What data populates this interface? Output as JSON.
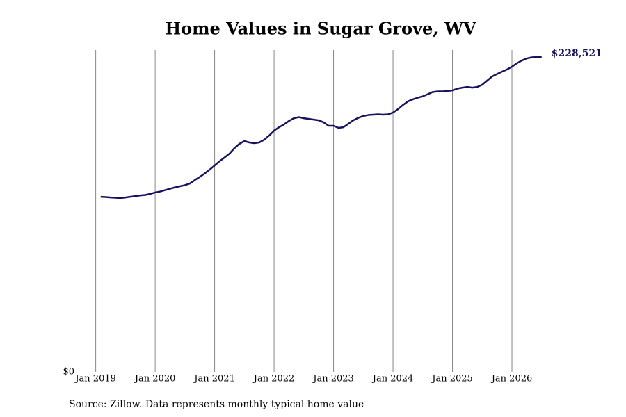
{
  "chart_data": {
    "type": "line",
    "title": "Home Values in Sugar Grove, WV",
    "source": "Source: Zillow. Data represents monthly typical home value",
    "color": "#16135e",
    "x": [
      "2019-02",
      "2019-03",
      "2019-04",
      "2019-05",
      "2019-06",
      "2019-07",
      "2019-08",
      "2019-09",
      "2019-10",
      "2019-11",
      "2019-12",
      "2020-01",
      "2020-02",
      "2020-03",
      "2020-04",
      "2020-05",
      "2020-06",
      "2020-07",
      "2020-08",
      "2020-09",
      "2020-10",
      "2020-11",
      "2020-12",
      "2021-01",
      "2021-02",
      "2021-03",
      "2021-04",
      "2021-05",
      "2021-06",
      "2021-07",
      "2021-08",
      "2021-09",
      "2021-10",
      "2021-11",
      "2021-12",
      "2022-01",
      "2022-02",
      "2022-03",
      "2022-04",
      "2022-05",
      "2022-06",
      "2022-07",
      "2022-08",
      "2022-09",
      "2022-10",
      "2022-11",
      "2022-12",
      "2023-01",
      "2023-02",
      "2023-03",
      "2023-04",
      "2023-05",
      "2023-06",
      "2023-07",
      "2023-08",
      "2023-09",
      "2023-10",
      "2023-11",
      "2023-12",
      "2024-01",
      "2024-02",
      "2024-03",
      "2024-04",
      "2024-05",
      "2024-06",
      "2024-07",
      "2024-08",
      "2024-09",
      "2024-10",
      "2024-11",
      "2024-12",
      "2025-01",
      "2025-02",
      "2025-03",
      "2025-04",
      "2025-05",
      "2025-06",
      "2025-07",
      "2025-08",
      "2025-09",
      "2025-10",
      "2025-11",
      "2025-12",
      "2026-01",
      "2026-02",
      "2026-03",
      "2026-04",
      "2026-05",
      "2026-06",
      "2026-07"
    ],
    "values": [
      127100,
      126900,
      126600,
      126400,
      126100,
      126600,
      127100,
      127600,
      128100,
      128400,
      129200,
      130200,
      130900,
      131900,
      132900,
      133900,
      134700,
      135500,
      136700,
      139200,
      141500,
      144000,
      146800,
      149800,
      152900,
      155600,
      158400,
      162400,
      165500,
      167500,
      166500,
      166000,
      166500,
      168500,
      171500,
      175100,
      177600,
      179600,
      182100,
      184100,
      184900,
      184100,
      183600,
      183100,
      182600,
      181100,
      178600,
      178600,
      177100,
      177600,
      180100,
      182600,
      184400,
      185700,
      186400,
      186700,
      186900,
      186700,
      186900,
      188200,
      190700,
      193700,
      196300,
      197800,
      199000,
      200000,
      201500,
      203100,
      203600,
      203600,
      203800,
      204300,
      205600,
      206300,
      206800,
      206300,
      206800,
      208400,
      211400,
      214400,
      216200,
      217900,
      219500,
      221500,
      224000,
      226000,
      227500,
      228300,
      228500,
      228521
    ],
    "value_labels": [
      null,
      null,
      null,
      null,
      null,
      null,
      null,
      null,
      null,
      null,
      null,
      null,
      null,
      null,
      null,
      null,
      null,
      null,
      null,
      null,
      null,
      null,
      null,
      null,
      null,
      null,
      null,
      null,
      null,
      null,
      null,
      null,
      null,
      null,
      null,
      null,
      null,
      null,
      null,
      null,
      null,
      null,
      null,
      null,
      null,
      null,
      null,
      null,
      null,
      null,
      null,
      null,
      null,
      null,
      null,
      null,
      null,
      null,
      null,
      null,
      null,
      null,
      null,
      null,
      null,
      null,
      null,
      null,
      null,
      null,
      null,
      null,
      null,
      null,
      null,
      null,
      null,
      null,
      null,
      null,
      null,
      null,
      null,
      null,
      null,
      null,
      null,
      null,
      null,
      "$228,521"
    ],
    "xlim": [
      "2018-08",
      "2026-09"
    ],
    "xticks": [
      {
        "value": "2019-01",
        "label": "Jan 2019"
      },
      {
        "value": "2020-01",
        "label": "Jan 2020"
      },
      {
        "value": "2021-01",
        "label": "Jan 2021"
      },
      {
        "value": "2022-01",
        "label": "Jan 2022"
      },
      {
        "value": "2023-01",
        "label": "Jan 2023"
      },
      {
        "value": "2024-01",
        "label": "Jan 2024"
      },
      {
        "value": "2025-01",
        "label": "Jan 2025"
      },
      {
        "value": "2026-01",
        "label": "Jan 2026"
      }
    ],
    "ylim": [
      0,
      233600
    ],
    "yticks": [
      {
        "value": 0,
        "label": "$0"
      }
    ],
    "grid": true
  }
}
